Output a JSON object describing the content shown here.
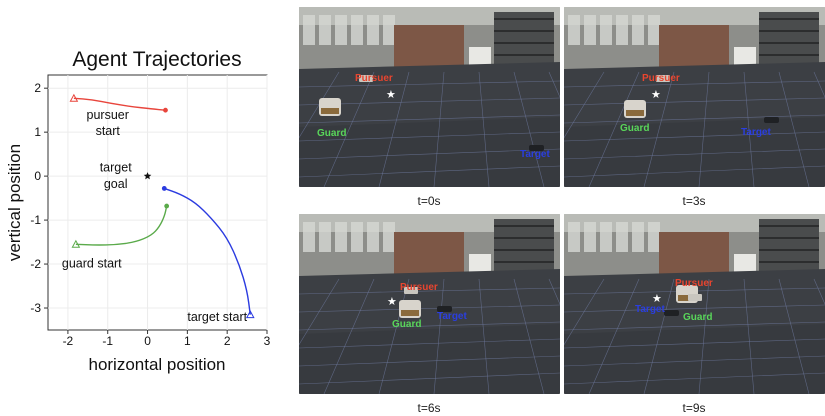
{
  "chart_data": {
    "type": "line",
    "title": "Agent Trajectories",
    "xlabel": "horizontal position",
    "ylabel": "vertical position",
    "xlim": [
      -2.5,
      3.0
    ],
    "ylim": [
      -3.5,
      2.3
    ],
    "xticks": [
      "-2",
      "-1",
      "0",
      "1",
      "2",
      "3"
    ],
    "yticks": [
      "2",
      "1",
      "0",
      "-1",
      "-2",
      "-3"
    ],
    "grid": true,
    "series": [
      {
        "color": "#e8453c",
        "x": [
          -1.85,
          -1.4,
          -0.9,
          -0.4,
          0.1,
          0.45
        ],
        "y": [
          1.77,
          1.74,
          1.65,
          1.58,
          1.53,
          1.5
        ]
      },
      {
        "color": "#5aaa4a",
        "x": [
          -1.8,
          -1.3,
          -0.8,
          -0.3,
          0.1,
          0.3,
          0.43,
          0.48
        ],
        "y": [
          -1.55,
          -1.57,
          -1.56,
          -1.5,
          -1.35,
          -1.15,
          -0.9,
          -0.68
        ]
      },
      {
        "color": "#2b3be0",
        "x": [
          2.58,
          2.5,
          2.3,
          2.0,
          1.6,
          1.2,
          0.8,
          0.42
        ],
        "y": [
          -3.15,
          -2.6,
          -2.0,
          -1.4,
          -0.95,
          -0.6,
          -0.4,
          -0.28
        ]
      }
    ],
    "points": [
      {
        "x": 0.0,
        "y": 0.0,
        "color": "#111111"
      }
    ],
    "annotations": [
      {
        "text": "pursuer",
        "x": -1.0,
        "y": 1.3
      },
      {
        "text": "start",
        "x": -1.0,
        "y": 0.93
      },
      {
        "text": "target",
        "x": -0.8,
        "y": 0.1
      },
      {
        "text": "goal",
        "x": -0.8,
        "y": -0.27
      },
      {
        "text": "guard start",
        "x": -1.4,
        "y": -2.08
      },
      {
        "text": "target start",
        "x": 1.75,
        "y": -3.3
      }
    ]
  },
  "snapshots": [
    {
      "caption": "t=0s",
      "labels": {
        "pursuer": {
          "text": "Pursuer"
        },
        "guard": {
          "text": "Guard"
        },
        "target": {
          "text": "Target"
        }
      }
    },
    {
      "caption": "t=3s",
      "labels": {
        "pursuer": {
          "text": "Pursuer"
        },
        "guard": {
          "text": "Guard"
        },
        "target": {
          "text": "Target"
        }
      }
    },
    {
      "caption": "t=6s",
      "labels": {
        "pursuer": {
          "text": "Pursuer"
        },
        "guard": {
          "text": "Guard"
        },
        "target": {
          "text": "Target"
        }
      }
    },
    {
      "caption": "t=9s",
      "labels": {
        "pursuer": {
          "text": "Pursuer"
        },
        "guard": {
          "text": "Guard"
        },
        "target": {
          "text": "Target"
        }
      }
    }
  ]
}
